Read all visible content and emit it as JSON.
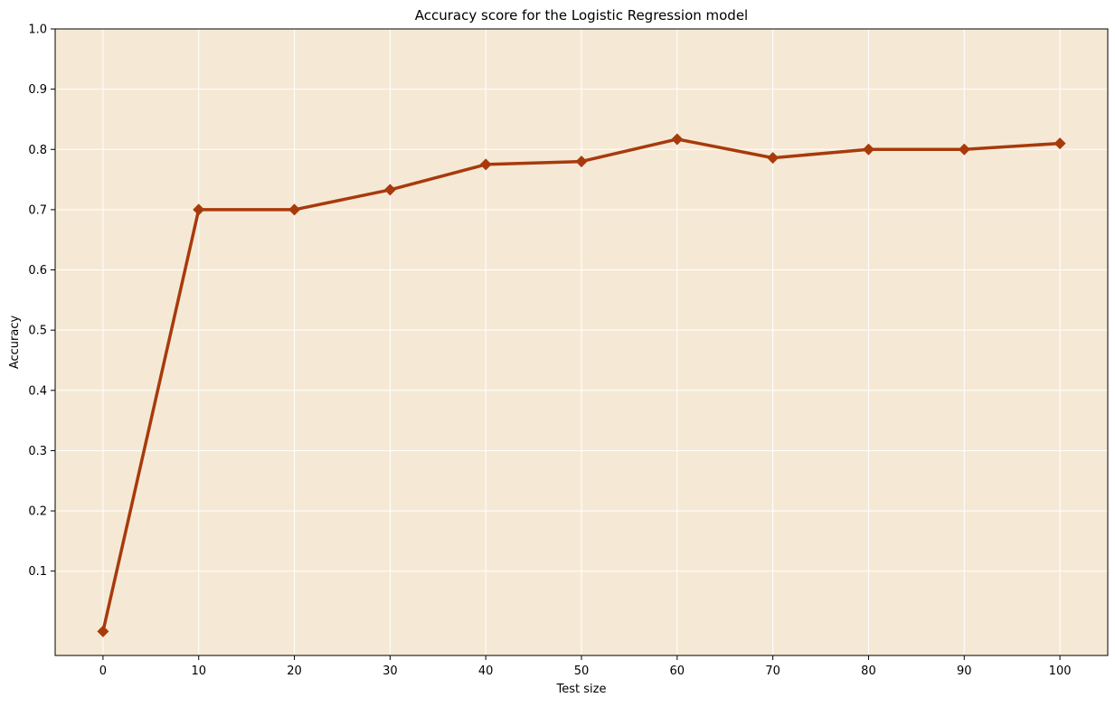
{
  "chart_data": {
    "type": "line",
    "title": "Accuracy score for the Logistic Regression model",
    "xlabel": "Test size",
    "ylabel": "Accuracy",
    "x": [
      0,
      10,
      20,
      30,
      40,
      50,
      60,
      70,
      80,
      90,
      100
    ],
    "series": [
      {
        "values": [
          0.0,
          0.7,
          0.7,
          0.733,
          0.775,
          0.78,
          0.817,
          0.786,
          0.8,
          0.8,
          0.81
        ]
      }
    ],
    "xlim": [
      -5,
      105
    ],
    "ylim": [
      -0.04,
      1.0
    ],
    "xticks": [
      0,
      10,
      20,
      30,
      40,
      50,
      60,
      70,
      80,
      90,
      100
    ],
    "xtick_labels": [
      "0",
      "10",
      "20",
      "30",
      "40",
      "50",
      "60",
      "70",
      "80",
      "90",
      "100"
    ],
    "yticks": [
      0.1,
      0.2,
      0.3,
      0.4,
      0.5,
      0.6,
      0.7,
      0.8,
      0.9,
      1.0
    ],
    "ytick_labels": [
      "0.1",
      "0.2",
      "0.3",
      "0.4",
      "0.5",
      "0.6",
      "0.7",
      "0.8",
      "0.9",
      "1.0"
    ],
    "grid": true,
    "marker": "diamond",
    "colors": {
      "line": "#a83a0c",
      "plot_background": "#f5e9d5",
      "grid": "#ffffff"
    }
  }
}
